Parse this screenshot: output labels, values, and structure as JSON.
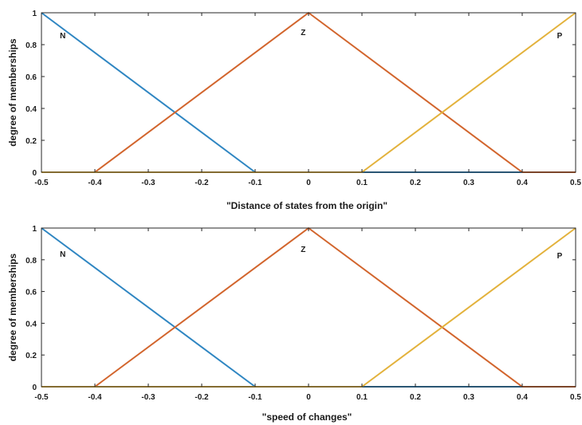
{
  "chart_data": [
    {
      "type": "line",
      "xlabel": "\"Distance of states from the origin\"",
      "ylabel": "degree of memberships",
      "xlim": [
        -0.5,
        0.5
      ],
      "ylim": [
        0,
        1
      ],
      "x_ticks": [
        "-0.5",
        "-0.4",
        "-0.3",
        "-0.2",
        "-0.1",
        "0",
        "0.1",
        "0.2",
        "0.3",
        "0.4",
        "0.5"
      ],
      "y_ticks": [
        "0",
        "0.2",
        "0.4",
        "0.6",
        "0.8",
        "1"
      ],
      "grid": false,
      "series": [
        {
          "name": "N",
          "color": "#2f86c2",
          "x": [
            -0.5,
            -0.1,
            0.5
          ],
          "y": [
            1,
            0,
            0
          ]
        },
        {
          "name": "Z",
          "color": "#d2652d",
          "x": [
            -0.5,
            -0.4,
            0,
            0.4,
            0.5
          ],
          "y": [
            0,
            0,
            1,
            0,
            0
          ]
        },
        {
          "name": "P",
          "color": "#e3b23c",
          "x": [
            -0.5,
            0.1,
            0.5
          ],
          "y": [
            0,
            0,
            1
          ]
        }
      ],
      "annotations": [
        {
          "text": "N",
          "x": -0.46,
          "y": 0.84
        },
        {
          "text": "Z",
          "x": -0.01,
          "y": 0.86
        },
        {
          "text": "P",
          "x": 0.47,
          "y": 0.84
        }
      ]
    },
    {
      "type": "line",
      "xlabel": "\"speed of changes\"",
      "ylabel": "degree of memberships",
      "xlim": [
        -0.5,
        0.5
      ],
      "ylim": [
        0,
        1
      ],
      "x_ticks": [
        "-0.5",
        "-0.4",
        "-0.3",
        "-0.2",
        "-0.1",
        "0",
        "0.1",
        "0.2",
        "0.3",
        "0.4",
        "0.5"
      ],
      "y_ticks": [
        "0",
        "0.2",
        "0.4",
        "0.6",
        "0.8",
        "1"
      ],
      "grid": false,
      "series": [
        {
          "name": "N",
          "color": "#2f86c2",
          "x": [
            -0.5,
            -0.1,
            0.5
          ],
          "y": [
            1,
            0,
            0
          ]
        },
        {
          "name": "Z",
          "color": "#d2652d",
          "x": [
            -0.5,
            -0.4,
            0,
            0.4,
            0.5
          ],
          "y": [
            0,
            0,
            1,
            0,
            0
          ]
        },
        {
          "name": "P",
          "color": "#e3b23c",
          "x": [
            -0.5,
            0.1,
            0.5
          ],
          "y": [
            0,
            0,
            1
          ]
        }
      ],
      "annotations": [
        {
          "text": "N",
          "x": -0.46,
          "y": 0.82
        },
        {
          "text": "Z",
          "x": -0.01,
          "y": 0.85
        },
        {
          "text": "P",
          "x": 0.47,
          "y": 0.81
        }
      ]
    }
  ]
}
